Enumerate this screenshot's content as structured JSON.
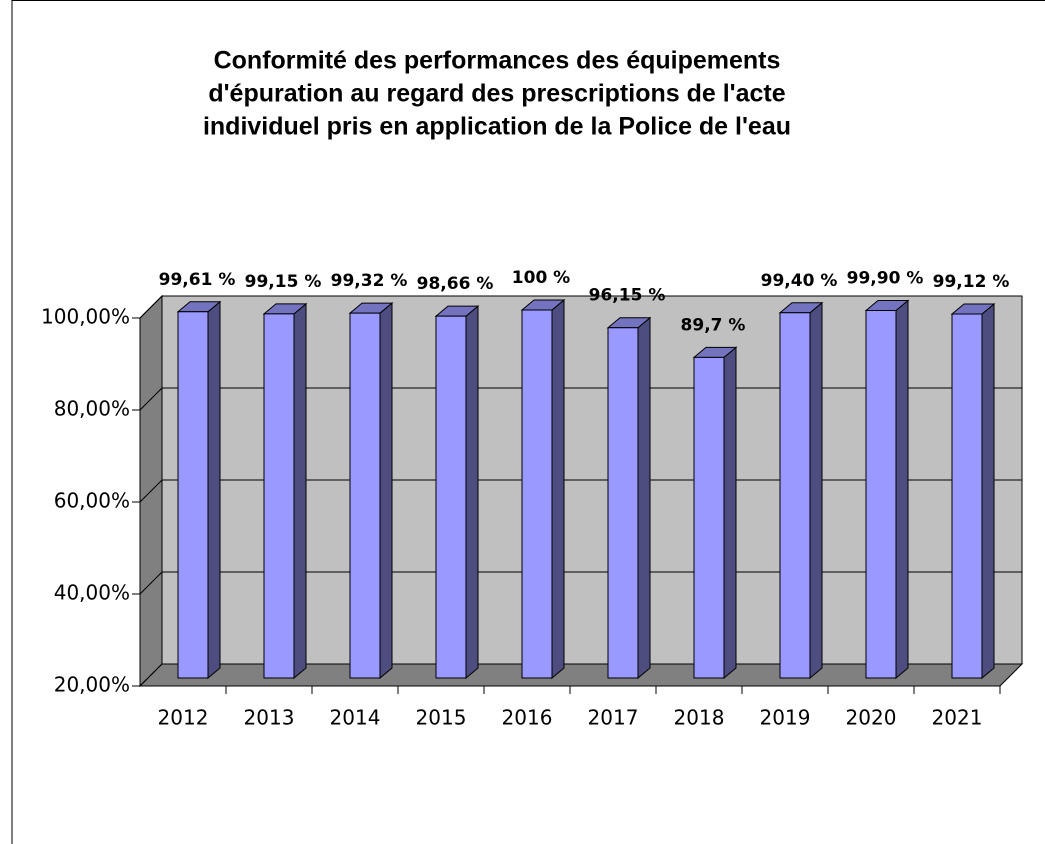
{
  "chart_data": {
    "type": "bar3d",
    "title": [
      "Conformité des performances des équipements",
      "d'épuration au regard des prescriptions de l'acte",
      "individuel pris en application de la Police de l'eau"
    ],
    "categories": [
      "2012",
      "2013",
      "2014",
      "2015",
      "2016",
      "2017",
      "2018",
      "2019",
      "2020",
      "2021"
    ],
    "values": [
      99.61,
      99.15,
      99.32,
      98.66,
      100,
      96.15,
      89.7,
      99.4,
      99.9,
      99.12
    ],
    "value_labels": [
      "99,61 %",
      "99,15 %",
      "99,32 %",
      "98,66 %",
      "100 %",
      "96,15 %",
      "89,7 %",
      "99,40 %",
      "99,90 %",
      "99,12 %"
    ],
    "color": "#9999ff",
    "ylim": [
      20,
      100
    ],
    "yticks": [
      {
        "value": 20,
        "label": "20,00%"
      },
      {
        "value": 40,
        "label": "40,00%"
      },
      {
        "value": 60,
        "label": "60,00%"
      },
      {
        "value": 80,
        "label": "80,00%"
      },
      {
        "value": 100,
        "label": "100,00%"
      }
    ],
    "grid": true
  }
}
